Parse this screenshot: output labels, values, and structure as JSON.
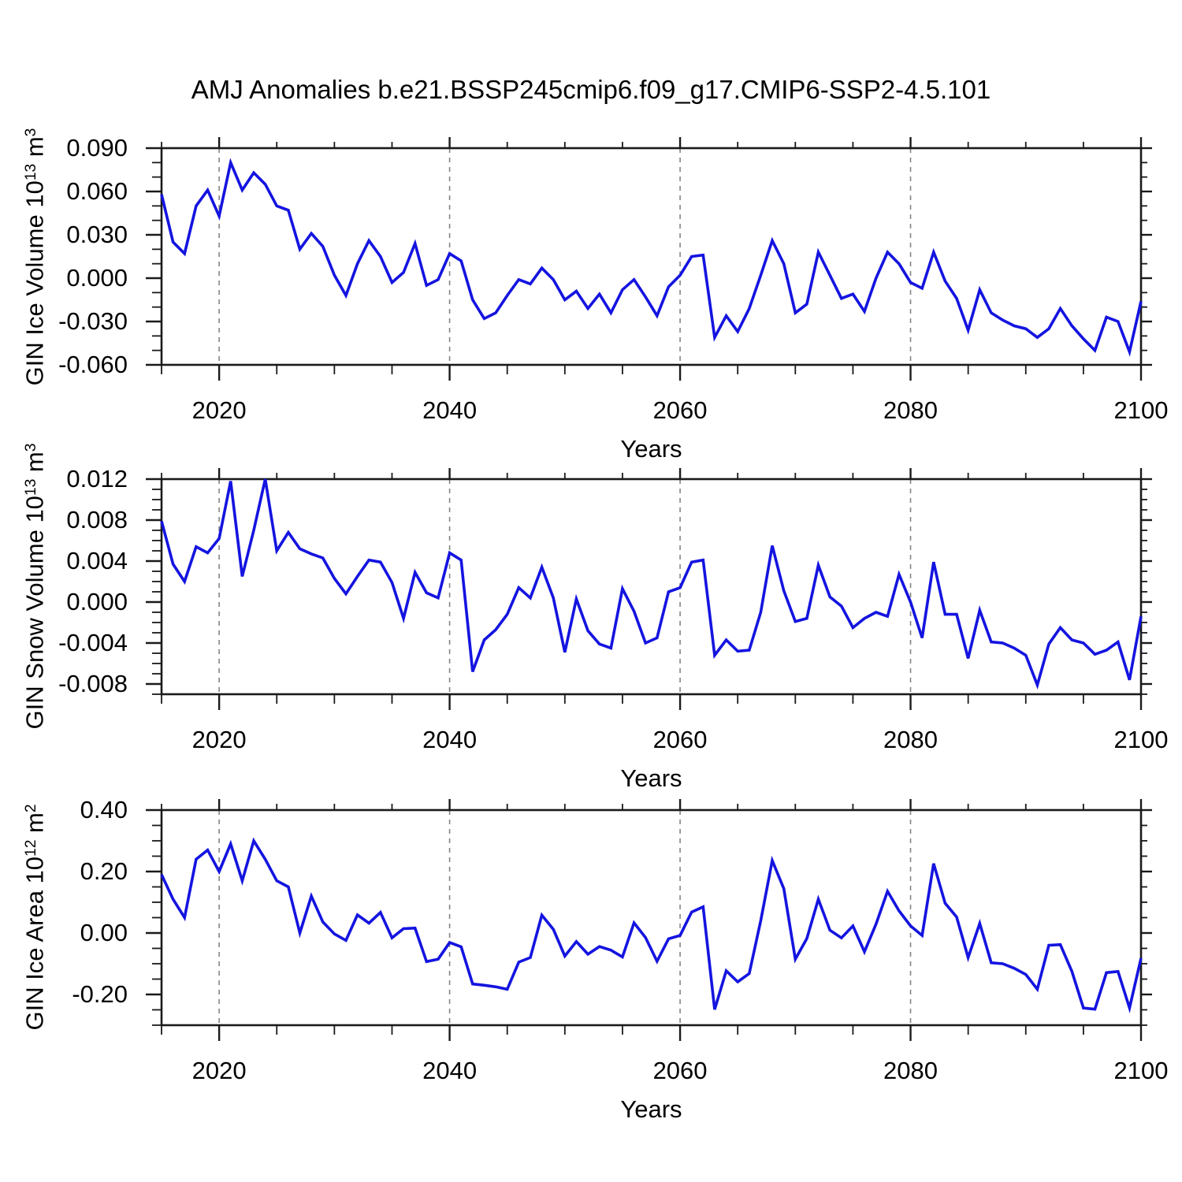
{
  "title": "AMJ Anomalies b.e21.BSSP245cmip6.f09_g17.CMIP6-SSP2-4.5.101",
  "chart_data": {
    "type": "line",
    "title": "AMJ Anomalies b.e21.BSSP245cmip6.f09_g17.CMIP6-SSP2-4.5.101",
    "xlabel": "Years",
    "xlim": [
      2015,
      2100
    ],
    "xticks": [
      2020,
      2040,
      2060,
      2080,
      2100
    ],
    "xtick_labels": [
      "2020",
      "2040",
      "2060",
      "2080",
      "2100"
    ],
    "xminor_step": 5,
    "grid_vlines": [
      2020,
      2040,
      2060,
      2080
    ],
    "grid_color": "#848484",
    "line_color": "#1414e0",
    "axis_color": "#1a1a1a",
    "legend": "none",
    "years": [
      2015,
      2016,
      2017,
      2018,
      2019,
      2020,
      2021,
      2022,
      2023,
      2024,
      2025,
      2026,
      2027,
      2028,
      2029,
      2030,
      2031,
      2032,
      2033,
      2034,
      2035,
      2036,
      2037,
      2038,
      2039,
      2040,
      2041,
      2042,
      2043,
      2044,
      2045,
      2046,
      2047,
      2048,
      2049,
      2050,
      2051,
      2052,
      2053,
      2054,
      2055,
      2056,
      2057,
      2058,
      2059,
      2060,
      2061,
      2062,
      2063,
      2064,
      2065,
      2066,
      2067,
      2068,
      2069,
      2070,
      2071,
      2072,
      2073,
      2074,
      2075,
      2076,
      2077,
      2078,
      2079,
      2080,
      2081,
      2082,
      2083,
      2084,
      2085,
      2086,
      2087,
      2088,
      2089,
      2090,
      2091,
      2092,
      2093,
      2094,
      2095,
      2096,
      2097,
      2098,
      2099,
      2100
    ],
    "panels": [
      {
        "name": "gin-ice-volume",
        "series_name": "GIN Ice Volume",
        "ylabel": {
          "pre": "GIN Ice Volume 10",
          "sup1": "13",
          "mid": " m",
          "sup2": "3"
        },
        "ylim": [
          -0.06,
          0.09
        ],
        "ytick_values": [
          0.09,
          0.06,
          0.03,
          0.0,
          -0.03,
          -0.06
        ],
        "ytick_labels": [
          "0.090",
          "0.060",
          "0.030",
          "0.000",
          "-0.030",
          "-0.060"
        ],
        "yminor_step": 0.01,
        "values": [
          0.058,
          0.025,
          0.017,
          0.05,
          0.061,
          0.043,
          0.08,
          0.061,
          0.073,
          0.065,
          0.05,
          0.047,
          0.02,
          0.031,
          0.022,
          0.002,
          -0.012,
          0.01,
          0.026,
          0.015,
          -0.003,
          0.004,
          0.024,
          -0.005,
          -0.001,
          0.017,
          0.012,
          -0.015,
          -0.028,
          -0.024,
          -0.012,
          -0.001,
          -0.004,
          0.007,
          -0.001,
          -0.015,
          -0.009,
          -0.021,
          -0.011,
          -0.024,
          -0.008,
          -0.001,
          -0.013,
          -0.026,
          -0.006,
          0.002,
          0.015,
          0.016,
          -0.041,
          -0.026,
          -0.037,
          -0.021,
          0.002,
          0.026,
          0.01,
          -0.024,
          -0.018,
          0.018,
          0.002,
          -0.014,
          -0.011,
          -0.023,
          0.0,
          0.018,
          0.01,
          -0.003,
          -0.007,
          0.018,
          -0.002,
          -0.014,
          -0.036,
          -0.008,
          -0.024,
          -0.029,
          -0.033,
          -0.035,
          -0.041,
          -0.035,
          -0.021,
          -0.033,
          -0.042,
          -0.05,
          -0.027,
          -0.03,
          -0.051,
          -0.016
        ]
      },
      {
        "name": "gin-snow-volume",
        "series_name": "GIN Snow Volume",
        "ylabel": {
          "pre": "GIN Snow Volume 10",
          "sup1": "13",
          "mid": " m",
          "sup2": "3"
        },
        "ylim": [
          -0.009,
          0.012
        ],
        "ytick_values": [
          0.012,
          0.008,
          0.004,
          0.0,
          -0.004,
          -0.008
        ],
        "ytick_labels": [
          "0.012",
          "0.008",
          "0.004",
          "0.000",
          "-0.004",
          "-0.008"
        ],
        "yminor_step": 0.001,
        "values": [
          0.0079,
          0.0037,
          0.002,
          0.0054,
          0.0048,
          0.0062,
          0.0118,
          0.0025,
          0.007,
          0.012,
          0.005,
          0.0068,
          0.0052,
          0.0047,
          0.0043,
          0.0023,
          0.0008,
          0.0025,
          0.0041,
          0.0039,
          0.0019,
          -0.0016,
          0.0029,
          0.0009,
          0.0004,
          0.0048,
          0.0041,
          -0.0068,
          -0.0037,
          -0.0027,
          -0.0012,
          0.0014,
          0.0004,
          0.0034,
          0.0004,
          -0.0049,
          0.0003,
          -0.0028,
          -0.0041,
          -0.0045,
          0.0013,
          -0.0009,
          -0.004,
          -0.0035,
          0.001,
          0.0014,
          0.0039,
          0.0041,
          -0.0052,
          -0.0037,
          -0.0048,
          -0.0047,
          -0.001,
          0.0055,
          0.0011,
          -0.0019,
          -0.0016,
          0.0036,
          0.0005,
          -0.0004,
          -0.0025,
          -0.0016,
          -0.001,
          -0.0014,
          0.0027,
          0.0,
          -0.0035,
          0.0039,
          -0.0012,
          -0.0012,
          -0.0055,
          -0.0008,
          -0.0039,
          -0.004,
          -0.0045,
          -0.0052,
          -0.0081,
          -0.0041,
          -0.0025,
          -0.0037,
          -0.004,
          -0.0051,
          -0.0047,
          -0.0039,
          -0.0076,
          -0.0014
        ]
      },
      {
        "name": "gin-ice-area",
        "series_name": "GIN Ice Area",
        "ylabel": {
          "pre": "GIN Ice Area 10",
          "sup1": "12",
          "mid": " m",
          "sup2": "2"
        },
        "ylim": [
          -0.3,
          0.4
        ],
        "ytick_values": [
          0.4,
          0.2,
          0.0,
          -0.2
        ],
        "ytick_labels": [
          "0.40",
          "0.20",
          "0.00",
          "-0.20"
        ],
        "yminor_step": 0.05,
        "values": [
          0.19,
          0.11,
          0.05,
          0.24,
          0.27,
          0.2,
          0.29,
          0.17,
          0.3,
          0.24,
          0.17,
          0.15,
          0.0,
          0.12,
          0.036,
          -0.003,
          -0.024,
          0.059,
          0.032,
          0.067,
          -0.016,
          0.014,
          0.016,
          -0.093,
          -0.085,
          -0.031,
          -0.045,
          -0.166,
          -0.17,
          -0.175,
          -0.183,
          -0.095,
          -0.08,
          0.058,
          0.012,
          -0.075,
          -0.028,
          -0.069,
          -0.044,
          -0.056,
          -0.078,
          0.033,
          -0.015,
          -0.092,
          -0.019,
          -0.008,
          0.068,
          0.085,
          -0.249,
          -0.123,
          -0.159,
          -0.132,
          0.04,
          0.236,
          0.144,
          -0.085,
          -0.018,
          0.11,
          0.009,
          -0.016,
          0.023,
          -0.061,
          0.029,
          0.136,
          0.072,
          0.023,
          -0.008,
          0.226,
          0.097,
          0.052,
          -0.08,
          0.031,
          -0.097,
          -0.1,
          -0.115,
          -0.135,
          -0.183,
          -0.04,
          -0.038,
          -0.125,
          -0.244,
          -0.248,
          -0.129,
          -0.125,
          -0.244,
          -0.082
        ]
      }
    ]
  }
}
